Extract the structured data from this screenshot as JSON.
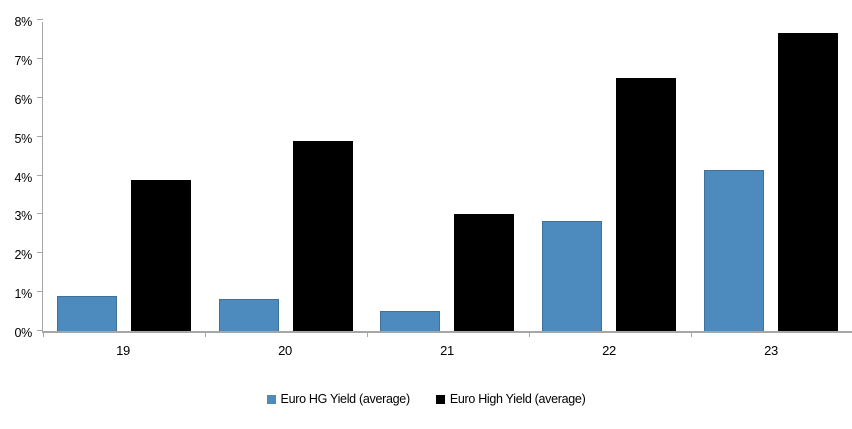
{
  "chart_data": {
    "type": "bar",
    "title": "",
    "xlabel": "",
    "ylabel": "",
    "categories": [
      "19",
      "20",
      "21",
      "22",
      "23"
    ],
    "series": [
      {
        "name": "Euro HG Yield (average)",
        "color": "#4d8abd",
        "values": [
          0.9,
          0.83,
          0.51,
          2.86,
          4.18
        ]
      },
      {
        "name": "Euro High Yield (average)",
        "color": "#000000",
        "values": [
          3.9,
          4.93,
          3.03,
          6.54,
          7.72
        ]
      }
    ],
    "ylim": [
      0,
      8
    ],
    "ytick_step": 1,
    "ytick_suffix": "%",
    "grid": false,
    "legend_position": "bottom",
    "axis_color": "#a6a6a6",
    "text_color": "#000000"
  }
}
